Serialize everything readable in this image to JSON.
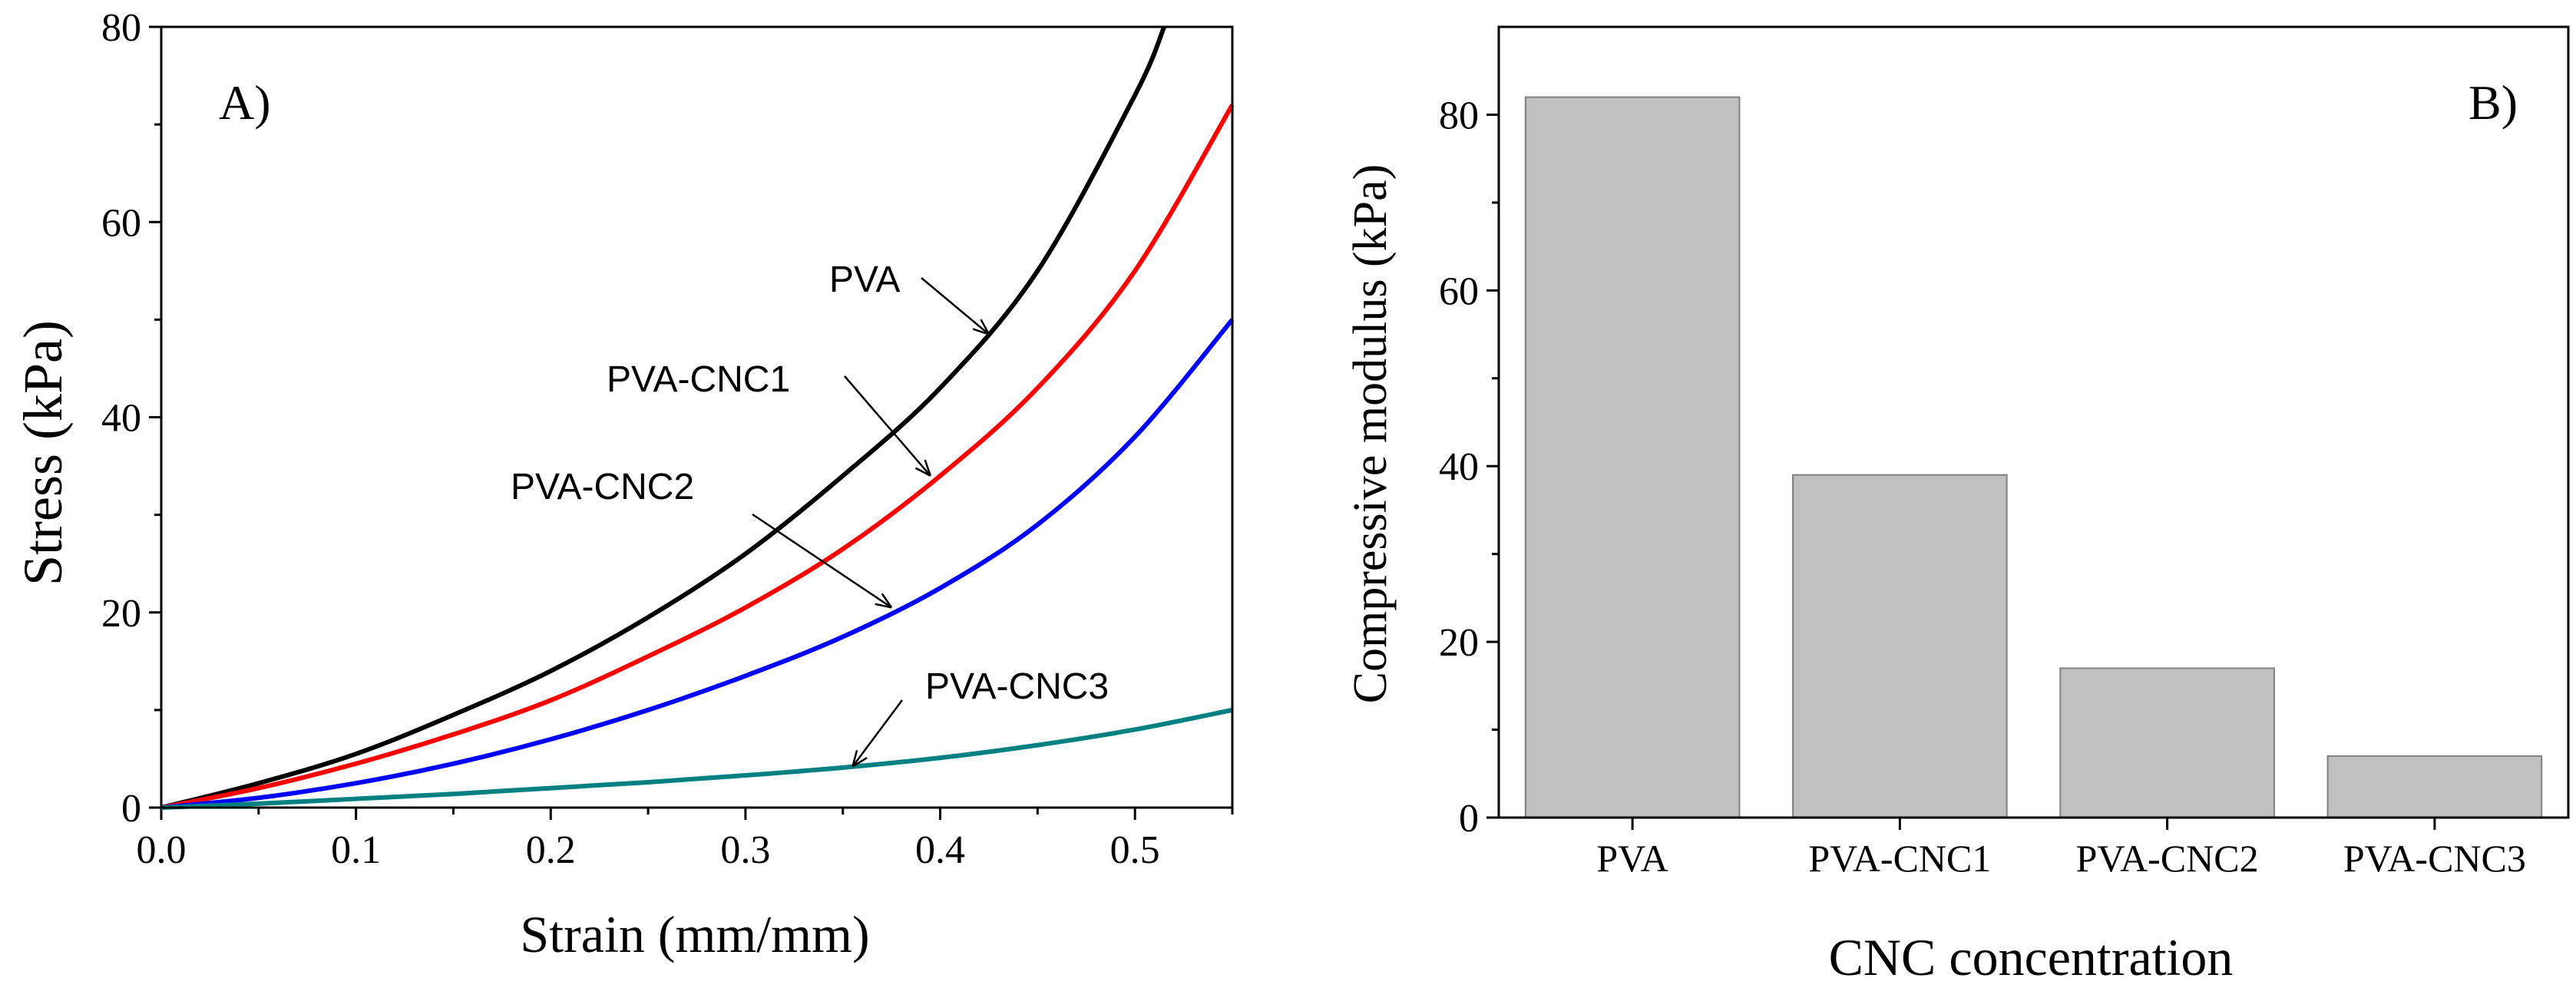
{
  "chart_data": [
    {
      "type": "line",
      "panel_label": "A)",
      "xlabel": "Strain (mm/mm)",
      "ylabel": "Stress (kPa)",
      "xlim": [
        0,
        0.55
      ],
      "ylim": [
        0,
        80
      ],
      "xticks": [
        "0.0",
        "0.1",
        "0.2",
        "0.3",
        "0.4",
        "0.5"
      ],
      "yticks": [
        "0",
        "20",
        "40",
        "60",
        "80"
      ],
      "series": [
        {
          "name": "PVA",
          "color": "#000000",
          "x": [
            0,
            0.05,
            0.1,
            0.15,
            0.2,
            0.25,
            0.3,
            0.35,
            0.4,
            0.45,
            0.5,
            0.515
          ],
          "y": [
            0,
            2.5,
            5.5,
            9.5,
            14,
            19.5,
            26,
            34,
            43,
            55,
            73,
            80
          ]
        },
        {
          "name": "PVA-CNC1",
          "color": "#ff0000",
          "x": [
            0,
            0.05,
            0.1,
            0.15,
            0.2,
            0.25,
            0.3,
            0.35,
            0.4,
            0.45,
            0.5,
            0.55
          ],
          "y": [
            0,
            2,
            4.5,
            7.5,
            11,
            15.5,
            20.5,
            26.5,
            34,
            43,
            55,
            72
          ]
        },
        {
          "name": "PVA-CNC2",
          "color": "#0000ff",
          "x": [
            0,
            0.05,
            0.1,
            0.15,
            0.2,
            0.25,
            0.3,
            0.35,
            0.4,
            0.45,
            0.5,
            0.55
          ],
          "y": [
            0,
            1,
            2.5,
            4.5,
            7,
            10,
            13.5,
            17.5,
            22.5,
            29,
            38,
            50
          ]
        },
        {
          "name": "PVA-CNC3",
          "color": "#008080",
          "x": [
            0,
            0.05,
            0.1,
            0.15,
            0.2,
            0.25,
            0.3,
            0.35,
            0.4,
            0.45,
            0.5,
            0.55
          ],
          "y": [
            0,
            0.4,
            0.9,
            1.4,
            2,
            2.6,
            3.3,
            4.1,
            5.1,
            6.4,
            8,
            10
          ]
        }
      ],
      "annotations": [
        {
          "text": "PVA",
          "series": "PVA",
          "arrow_to": [
            0.425,
            48.5
          ]
        },
        {
          "text": "PVA-CNC1",
          "series": "PVA-CNC1",
          "arrow_to": [
            0.395,
            34
          ]
        },
        {
          "text": "PVA-CNC2",
          "series": "PVA-CNC2",
          "arrow_to": [
            0.375,
            20.5
          ]
        },
        {
          "text": "PVA-CNC3",
          "series": "PVA-CNC3",
          "arrow_to": [
            0.355,
            4.2
          ]
        }
      ]
    },
    {
      "type": "bar",
      "panel_label": "B)",
      "xlabel": "CNC concentration",
      "ylabel": "Compressive modulus (kPa)",
      "ylim": [
        0,
        90
      ],
      "yticks": [
        "0",
        "20",
        "40",
        "60",
        "80"
      ],
      "categories": [
        "PVA",
        "PVA-CNC1",
        "PVA-CNC2",
        "PVA-CNC3"
      ],
      "values": [
        82,
        39,
        17,
        7
      ],
      "bar_color": "#c0c0c0"
    }
  ]
}
